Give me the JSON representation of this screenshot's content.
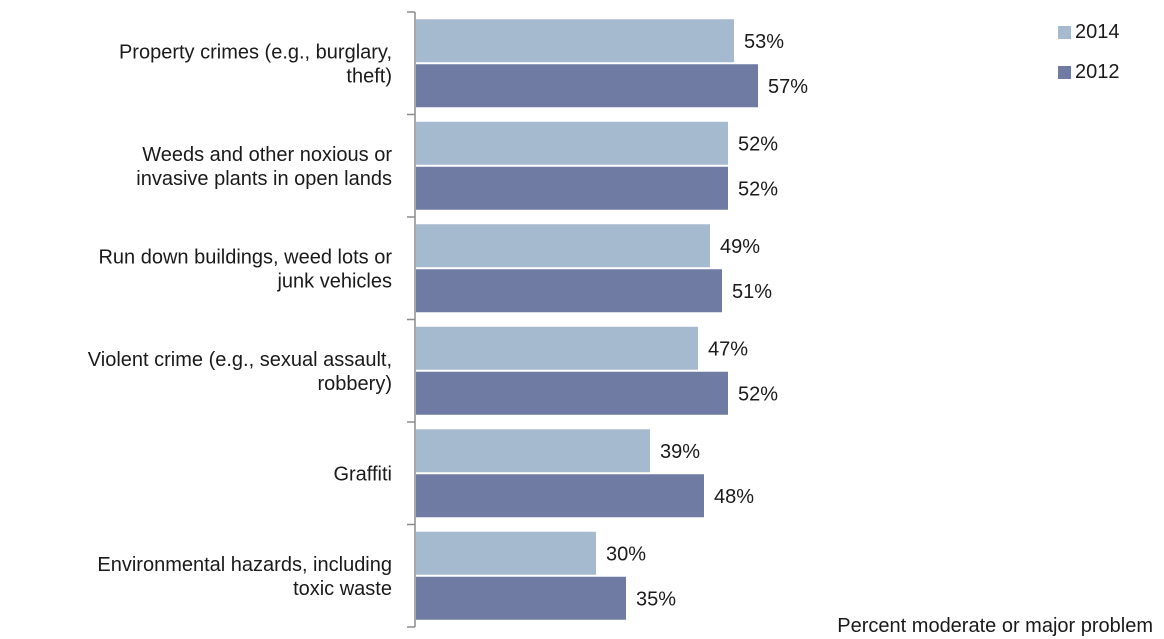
{
  "chart_data": {
    "type": "bar",
    "orientation": "horizontal",
    "categories": [
      [
        "Property crimes (e.g., burglary,",
        "theft)"
      ],
      [
        "Weeds and other noxious or",
        "invasive plants in open lands"
      ],
      [
        "Run down buildings, weed lots or",
        "junk vehicles"
      ],
      [
        "Violent crime (e.g., sexual assault,",
        "robbery)"
      ],
      [
        "Graffiti"
      ],
      [
        "Environmental hazards, including",
        "toxic waste"
      ]
    ],
    "series": [
      {
        "name": "2014",
        "color": "#a5b9cf",
        "values": [
          53,
          52,
          49,
          47,
          39,
          30
        ]
      },
      {
        "name": "2012",
        "color": "#6f7ba3",
        "values": [
          57,
          52,
          51,
          52,
          48,
          35
        ]
      }
    ],
    "value_suffix": "%",
    "xlabel": "Percent moderate or major problem",
    "xlim": [
      0,
      100
    ],
    "legend_position": "top-right",
    "grid": false
  }
}
